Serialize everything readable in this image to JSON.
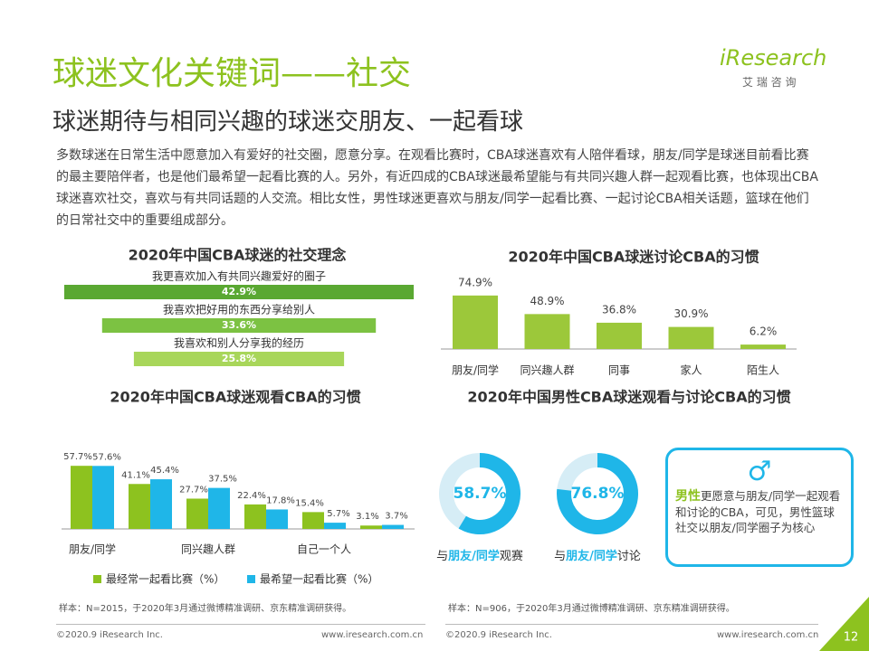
{
  "header": {
    "title": "球迷文化关键词——社交",
    "subtitle": "球迷期待与相同兴趣的球迷交朋友、一起看球",
    "logo": "iResearch",
    "logo_sub": "艾 瑞 咨 询"
  },
  "intro": "多数球迷在日常生活中愿意加入有爱好的社交圈，愿意分享。在观看比赛时，CBA球迷喜欢有人陪伴看球，朋友/同学是球迷目前看比赛的最主要陪伴者，也是他们最希望一起看比赛的人。另外，有近四成的CBA球迷最希望能与有共同兴趣人群一起观看比赛，也体现出CBA球迷喜欢社交，喜欢与有共同话题的人交流。相比女性，男性球迷更喜欢与朋友/同学一起看比赛、一起讨论CBA相关话题，篮球在他们的日常社交中的重要组成部分。",
  "chart_data": [
    {
      "type": "hbar",
      "title": "2020年中国CBA球迷的社交理念",
      "categories": [
        "我更喜欢加入有共同兴趣爱好的圈子",
        "我喜欢把好用的东西分享给别人",
        "我喜欢和别人分享我的经历"
      ],
      "values": [
        42.9,
        33.6,
        25.8
      ],
      "value_labels": [
        "42.9%",
        "33.6%",
        "25.8%"
      ],
      "colors": [
        "#5aa832",
        "#7cc242",
        "#a8d65a"
      ]
    },
    {
      "type": "bar",
      "title": "2020年中国CBA球迷讨论CBA的习惯",
      "categories": [
        "朋友/同学",
        "同兴趣人群",
        "同事",
        "家人",
        "陌生人"
      ],
      "values": [
        74.9,
        48.9,
        36.8,
        30.9,
        6.2
      ],
      "value_labels": [
        "74.9%",
        "48.9%",
        "36.8%",
        "30.9%",
        "6.2%"
      ],
      "color": "#9cc83a"
    },
    {
      "type": "grouped_bar",
      "title": "2020年中国CBA球迷观看CBA的习惯",
      "categories": [
        "朋友/同学",
        null,
        "同兴趣人群",
        null,
        "自己一个人",
        null
      ],
      "series": [
        {
          "name": "最经常一起看比赛（%）",
          "color": "#8dc21f",
          "values": [
            57.7,
            41.1,
            27.7,
            22.4,
            15.4,
            3.1
          ],
          "value_labels": [
            "57.7%",
            "41.1%",
            "27.7%",
            "22.4%",
            "15.4%",
            "3.1%"
          ]
        },
        {
          "name": "最希望一起看比赛（%）",
          "color": "#1fb6e8",
          "values": [
            57.6,
            45.4,
            37.5,
            17.8,
            5.7,
            3.7
          ],
          "value_labels": [
            "57.6%",
            "45.4%",
            "37.5%",
            "17.8%",
            "5.7%",
            "3.7%"
          ]
        }
      ]
    },
    {
      "type": "donut",
      "title": "2020年中国男性CBA球迷观看与讨论CBA的习惯",
      "values": [
        58.7,
        76.8
      ],
      "value_labels": [
        "58.7%",
        "76.8%"
      ],
      "label_parts": [
        [
          "与",
          "朋友/同学",
          "观赛"
        ],
        [
          "与",
          "朋友/同学",
          "讨论"
        ]
      ],
      "color": "#1fb6e8",
      "track_color": "#d6edf6"
    }
  ],
  "callout": {
    "highlight": "男性",
    "text": "更愿意与朋友/同学一起观看和讨论的CBA，可见，男性篮球社交以朋友/同学圈子为核心"
  },
  "notes": [
    "样本：N=2015，于2020年3月通过微博精准调研、京东精准调研获得。",
    "样本：N=906，于2020年3月通过微博精准调研、京东精准调研获得。"
  ],
  "footer": {
    "copyright": "©2020.9 iResearch Inc.",
    "url": "www.iresearch.com.cn",
    "page": "12"
  }
}
